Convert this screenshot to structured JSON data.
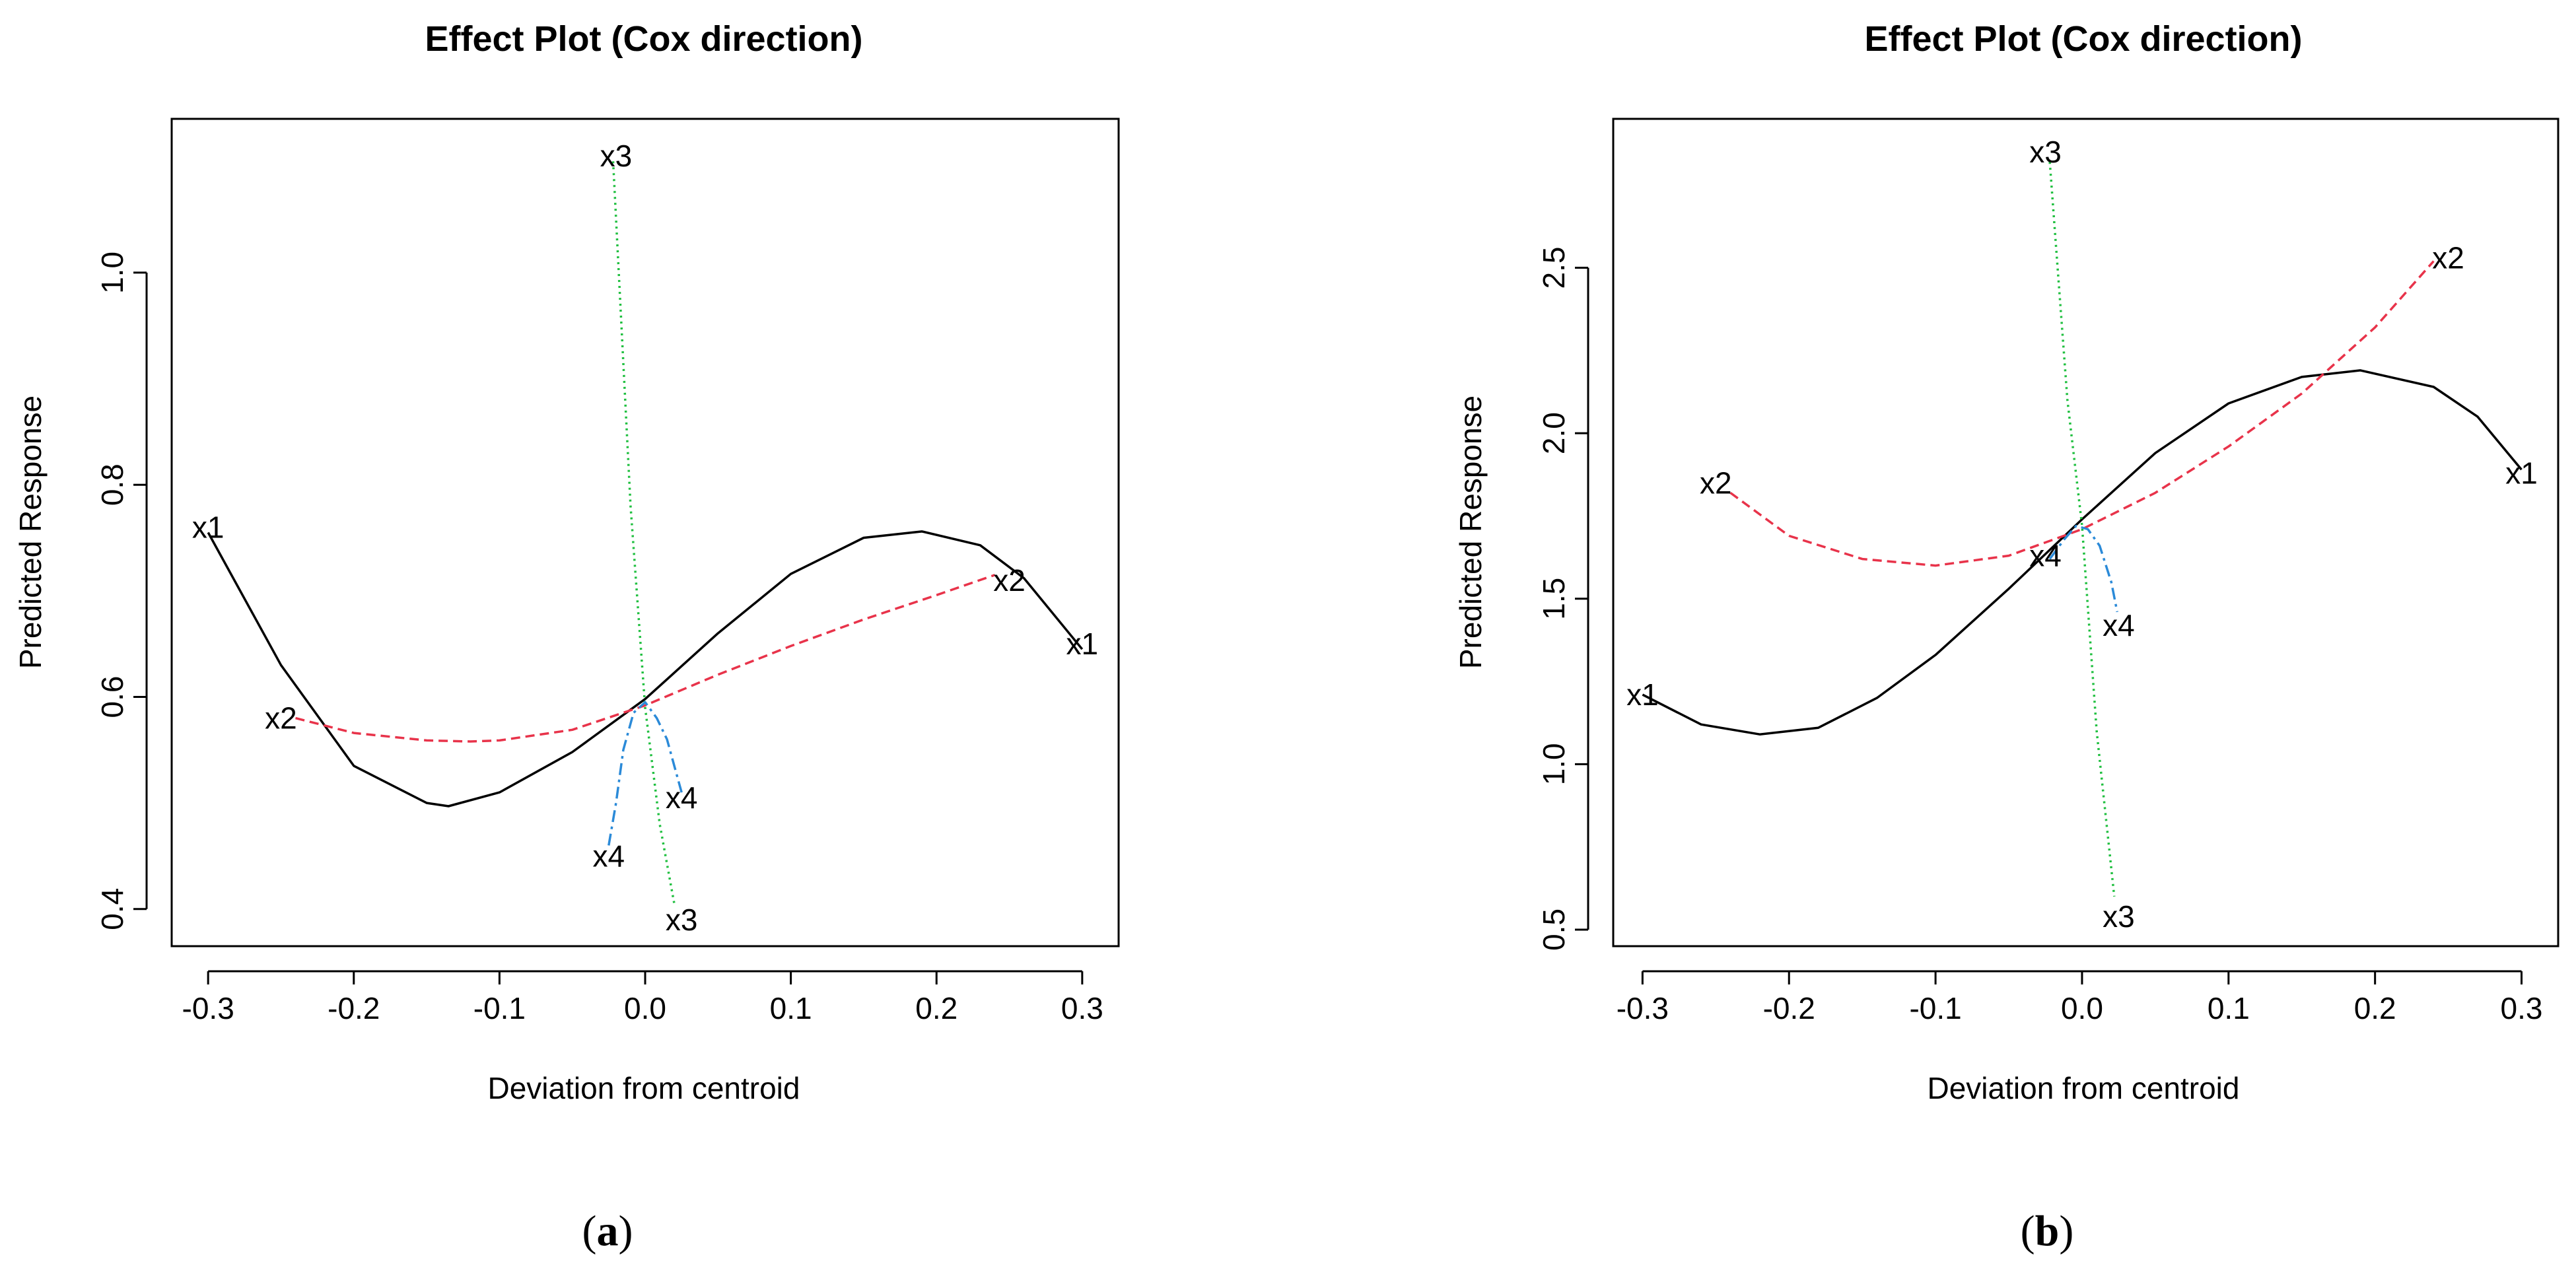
{
  "chart_data": [
    {
      "type": "line",
      "panel_label": "a",
      "title": "Effect Plot (Cox direction)",
      "xlabel": "Deviation from centroid",
      "ylabel": "Predicted Response",
      "xlim": [
        -0.325,
        0.325
      ],
      "ylim": [
        0.365,
        1.145
      ],
      "xticks": [
        -0.3,
        -0.2,
        -0.1,
        0.0,
        0.1,
        0.2,
        0.3
      ],
      "xtick_labels": [
        "-0.3",
        "-0.2",
        "-0.1",
        "0.0",
        "0.1",
        "0.2",
        "0.3"
      ],
      "yticks": [
        0.4,
        0.6,
        0.8,
        1.0
      ],
      "ytick_labels": [
        "0.4",
        "0.6",
        "0.8",
        "1.0"
      ],
      "series": [
        {
          "name": "x1",
          "color": "#000000",
          "dash": "solid",
          "x": [
            -0.3,
            -0.25,
            -0.2,
            -0.15,
            -0.135,
            -0.1,
            -0.05,
            0.0,
            0.05,
            0.1,
            0.15,
            0.19,
            0.23,
            0.26,
            0.3
          ],
          "y": [
            0.755,
            0.63,
            0.535,
            0.5,
            0.497,
            0.51,
            0.548,
            0.598,
            0.66,
            0.716,
            0.75,
            0.756,
            0.743,
            0.712,
            0.645
          ],
          "labels": [
            {
              "text": "x1",
              "x": -0.3,
              "y": 0.76
            },
            {
              "text": "x1",
              "x": 0.3,
              "y": 0.65
            }
          ]
        },
        {
          "name": "x2",
          "color": "#e8334a",
          "dash": "dashed",
          "x": [
            -0.24,
            -0.2,
            -0.15,
            -0.12,
            -0.1,
            -0.05,
            0.0,
            0.05,
            0.1,
            0.15,
            0.2,
            0.24
          ],
          "y": [
            0.58,
            0.566,
            0.559,
            0.558,
            0.559,
            0.569,
            0.592,
            0.621,
            0.648,
            0.673,
            0.696,
            0.715
          ],
          "labels": [
            {
              "text": "x2",
              "x": -0.25,
              "y": 0.58
            },
            {
              "text": "x2",
              "x": 0.25,
              "y": 0.71
            }
          ]
        },
        {
          "name": "x3",
          "color": "#1fbf3f",
          "dash": "dotted",
          "x": [
            -0.022,
            -0.01,
            0.0,
            0.01,
            0.02
          ],
          "y": [
            1.105,
            0.78,
            0.59,
            0.48,
            0.405
          ],
          "labels": [
            {
              "text": "x3",
              "x": -0.02,
              "y": 1.11
            },
            {
              "text": "x3",
              "x": 0.025,
              "y": 0.39
            }
          ]
        },
        {
          "name": "x4",
          "color": "#2b8ad8",
          "dash": "dashdot",
          "x": [
            -0.025,
            -0.02,
            -0.015,
            -0.008,
            0.0,
            0.008,
            0.015,
            0.02,
            0.025
          ],
          "y": [
            0.46,
            0.5,
            0.55,
            0.585,
            0.595,
            0.58,
            0.56,
            0.535,
            0.51
          ],
          "labels": [
            {
              "text": "x4",
              "x": -0.025,
              "y": 0.45
            },
            {
              "text": "x4",
              "x": 0.025,
              "y": 0.505
            }
          ]
        }
      ]
    },
    {
      "type": "line",
      "panel_label": "b",
      "title": "Effect Plot (Cox direction)",
      "xlabel": "Deviation from centroid",
      "ylabel": "Predicted Response",
      "xlim": [
        -0.32,
        0.325
      ],
      "ylim": [
        0.45,
        2.95
      ],
      "xticks": [
        -0.3,
        -0.2,
        -0.1,
        0.0,
        0.1,
        0.2,
        0.3
      ],
      "xtick_labels": [
        "-0.3",
        "-0.2",
        "-0.1",
        "0.0",
        "0.1",
        "0.2",
        "0.3"
      ],
      "yticks": [
        0.5,
        1.0,
        1.5,
        2.0,
        2.5
      ],
      "ytick_labels": [
        "0.5",
        "1.0",
        "1.5",
        "2.0",
        "2.5"
      ],
      "series": [
        {
          "name": "x1",
          "color": "#000000",
          "dash": "solid",
          "x": [
            -0.3,
            -0.26,
            -0.22,
            -0.18,
            -0.14,
            -0.1,
            -0.05,
            0.0,
            0.05,
            0.1,
            0.15,
            0.19,
            0.24,
            0.27,
            0.3
          ],
          "y": [
            1.21,
            1.12,
            1.09,
            1.11,
            1.2,
            1.33,
            1.53,
            1.74,
            1.94,
            2.09,
            2.17,
            2.19,
            2.14,
            2.05,
            1.89
          ],
          "labels": [
            {
              "text": "x1",
              "x": -0.3,
              "y": 1.21
            },
            {
              "text": "x1",
              "x": 0.3,
              "y": 1.88
            }
          ]
        },
        {
          "name": "x2",
          "color": "#e8334a",
          "dash": "dashed",
          "x": [
            -0.24,
            -0.2,
            -0.15,
            -0.1,
            -0.05,
            0.0,
            0.05,
            0.1,
            0.15,
            0.2,
            0.24
          ],
          "y": [
            1.82,
            1.69,
            1.62,
            1.6,
            1.63,
            1.71,
            1.82,
            1.96,
            2.12,
            2.32,
            2.52
          ],
          "labels": [
            {
              "text": "x2",
              "x": -0.25,
              "y": 1.85
            },
            {
              "text": "x2",
              "x": 0.25,
              "y": 2.53
            }
          ]
        },
        {
          "name": "x3",
          "color": "#1fbf3f",
          "dash": "dotted",
          "x": [
            -0.022,
            -0.01,
            0.0,
            0.01,
            0.022
          ],
          "y": [
            2.82,
            2.1,
            1.72,
            1.1,
            0.6
          ],
          "labels": [
            {
              "text": "x3",
              "x": -0.025,
              "y": 2.85
            },
            {
              "text": "x3",
              "x": 0.025,
              "y": 0.54
            }
          ]
        },
        {
          "name": "x4",
          "color": "#2b8ad8",
          "dash": "dashdot",
          "x": [
            -0.022,
            -0.012,
            -0.004,
            0.004,
            0.012,
            0.02,
            0.024
          ],
          "y": [
            1.62,
            1.68,
            1.72,
            1.71,
            1.66,
            1.55,
            1.46
          ],
          "labels": [
            {
              "text": "x4",
              "x": -0.025,
              "y": 1.63
            },
            {
              "text": "x4",
              "x": 0.025,
              "y": 1.42
            }
          ]
        }
      ]
    }
  ]
}
